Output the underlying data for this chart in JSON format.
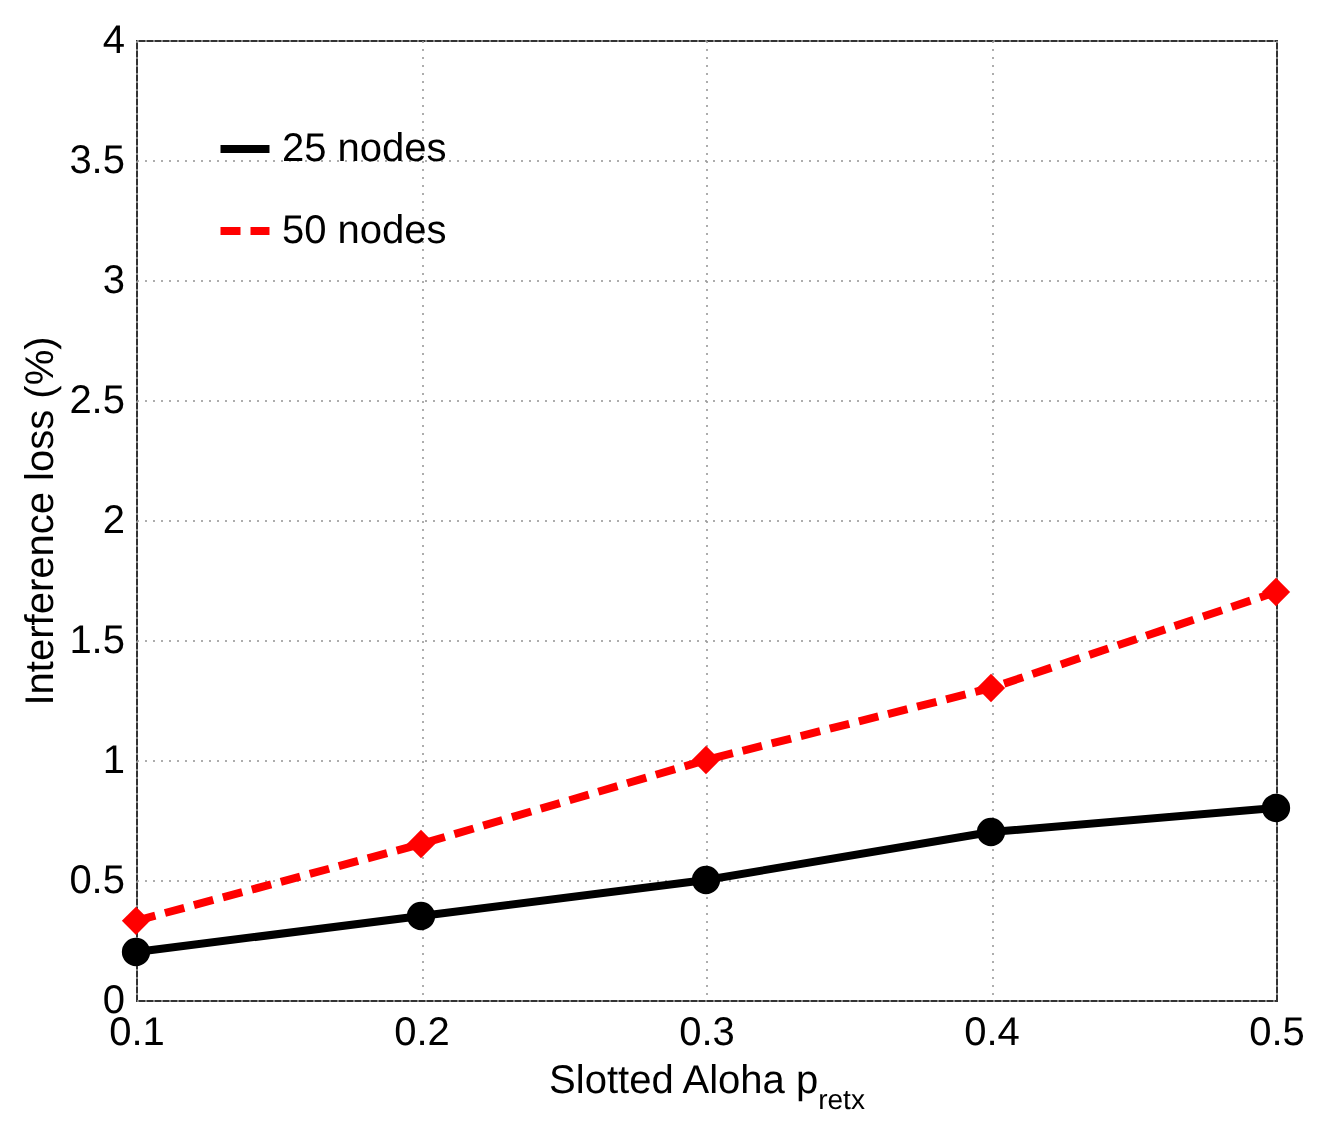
{
  "chart_data": {
    "type": "line",
    "xlabel": "Slotted Aloha p$_{retx}$",
    "ylabel": "Interference loss (%)",
    "x": [
      0.1,
      0.2,
      0.3,
      0.4,
      0.5
    ],
    "series": [
      {
        "name": "25 nodes",
        "color": "#000000",
        "values": [
          0.2,
          0.35,
          0.5,
          0.7,
          0.8
        ],
        "marker": "circle",
        "line_style": "solid"
      },
      {
        "name": "50 nodes",
        "color": "#ff0000",
        "values": [
          0.33,
          0.65,
          1.0,
          1.3,
          1.7
        ],
        "marker": "diamond",
        "line_style": "dashed"
      }
    ],
    "xlim": [
      0.1,
      0.5
    ],
    "xticks": [
      0.1,
      0.2,
      0.3,
      0.4,
      0.5
    ],
    "ylim": [
      0,
      4
    ],
    "yticks": [
      0,
      0.5,
      1,
      1.5,
      2,
      2.5,
      3,
      3.5,
      4
    ],
    "grid": true,
    "legend": "top left"
  }
}
